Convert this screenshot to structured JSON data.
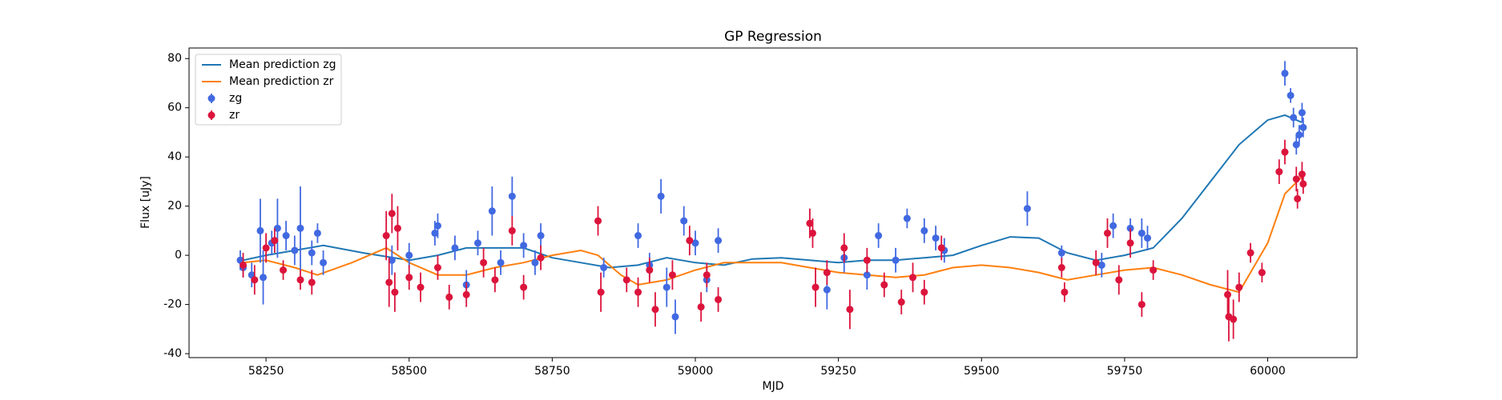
{
  "chart_data": {
    "type": "line",
    "title": "GP Regression",
    "xlabel": "MJD",
    "ylabel": "Flux [uJy]",
    "xlim": [
      58115.5,
      60156
    ],
    "ylim": [
      -41.6,
      84.3
    ],
    "xticks": [
      58250,
      58500,
      58750,
      59000,
      59250,
      59500,
      59750,
      60000
    ],
    "yticks": [
      -40,
      -20,
      0,
      20,
      40,
      60,
      80
    ],
    "legend": "upper left",
    "series": [
      {
        "name": "Mean prediction zg",
        "color": "#1f77b4",
        "x": [
          58210,
          58250,
          58300,
          58350,
          58420,
          58500,
          58550,
          58600,
          58650,
          58700,
          58750,
          58800,
          58850,
          58900,
          58950,
          59000,
          59050,
          59100,
          59150,
          59200,
          59250,
          59300,
          59350,
          59400,
          59450,
          59500,
          59550,
          59600,
          59650,
          59700,
          59750,
          59800,
          59850,
          59900,
          59950,
          60000,
          60030,
          60060
        ],
        "values": [
          -2,
          0,
          2,
          4,
          1,
          -2,
          0,
          3,
          3,
          3,
          -1,
          -3,
          -5,
          -4,
          -1,
          -3,
          -4,
          -1.5,
          -1,
          -2,
          -3,
          -2,
          -2,
          -1,
          0,
          4,
          7.5,
          7,
          1,
          -2,
          0,
          3,
          15,
          30,
          45,
          55,
          57,
          54
        ]
      },
      {
        "name": "Mean prediction zr",
        "color": "#ff7f0e",
        "x": [
          58210,
          58250,
          58300,
          58340,
          58400,
          58460,
          58500,
          58550,
          58600,
          58650,
          58700,
          58750,
          58800,
          58830,
          58870,
          58900,
          58950,
          59000,
          59050,
          59100,
          59150,
          59200,
          59250,
          59300,
          59350,
          59400,
          59450,
          59500,
          59550,
          59600,
          59650,
          59700,
          59750,
          59800,
          59850,
          59900,
          59950,
          60000,
          60030,
          60060
        ],
        "values": [
          -3,
          -2,
          -5,
          -8,
          -3,
          3,
          -3,
          -8,
          -8,
          -5,
          -3,
          0,
          2,
          0,
          -8,
          -12,
          -10,
          -6,
          -3,
          -3,
          -3,
          -5,
          -7,
          -8,
          -9,
          -8,
          -5,
          -4,
          -5,
          -7,
          -10,
          -8,
          -6,
          -5,
          -8,
          -12,
          -15,
          5,
          25,
          32
        ]
      },
      {
        "name": "zg",
        "color": "#4169e1",
        "x": [
          58205,
          58210,
          58225,
          58240,
          58245,
          58260,
          58270,
          58285,
          58300,
          58310,
          58330,
          58340,
          58350,
          58470,
          58500,
          58545,
          58550,
          58580,
          58600,
          58620,
          58645,
          58660,
          58680,
          58700,
          58720,
          58730,
          58840,
          58900,
          58920,
          58940,
          58950,
          58965,
          58980,
          59000,
          59020,
          59040,
          59230,
          59260,
          59300,
          59320,
          59350,
          59370,
          59400,
          59420,
          59435,
          59580,
          59640,
          59710,
          59730,
          59760,
          59780,
          59790,
          60030,
          60040,
          60045,
          60050,
          60055,
          60060,
          60062
        ],
        "values": [
          -2,
          -5,
          -8,
          10,
          -9,
          5,
          11,
          8,
          2,
          11,
          1,
          9,
          -3,
          -2,
          0,
          9,
          12,
          3,
          -12,
          5,
          18,
          -3,
          24,
          4,
          -3,
          8,
          -5,
          8,
          -4,
          24,
          -13,
          -25,
          14,
          5,
          -10,
          6,
          -14,
          -1,
          -8,
          8,
          -2,
          15,
          10,
          7,
          2,
          19,
          1,
          -4,
          12,
          11,
          9,
          7,
          74,
          65,
          56,
          45,
          49,
          58,
          52
        ],
        "errors": [
          4,
          4,
          5,
          13,
          11,
          5,
          12,
          6,
          6,
          17,
          5,
          4,
          5,
          6,
          5,
          5,
          5,
          5,
          6,
          5,
          10,
          5,
          8,
          5,
          5,
          5,
          4,
          5,
          5,
          7,
          8,
          7,
          6,
          5,
          5,
          5,
          8,
          6,
          6,
          5,
          5,
          4,
          5,
          5,
          5,
          7,
          3,
          5,
          5,
          4,
          6,
          5,
          5,
          3,
          4,
          4,
          4,
          4,
          4
        ]
      },
      {
        "name": "zr",
        "color": "#dc143c",
        "x": [
          58210,
          58230,
          58250,
          58265,
          58280,
          58310,
          58330,
          58460,
          58465,
          58470,
          58475,
          58480,
          58500,
          58520,
          58550,
          58570,
          58600,
          58630,
          58650,
          58680,
          58700,
          58730,
          58830,
          58835,
          58880,
          58900,
          58920,
          58930,
          58960,
          58990,
          59010,
          59020,
          59040,
          59200,
          59205,
          59210,
          59230,
          59260,
          59270,
          59300,
          59330,
          59360,
          59380,
          59400,
          59430,
          59640,
          59645,
          59700,
          59720,
          59740,
          59760,
          59780,
          59800,
          59930,
          59932,
          59940,
          59950,
          59970,
          59990,
          60020,
          60030,
          60050,
          60052,
          60060,
          60062
        ],
        "values": [
          -4,
          -10,
          3,
          6,
          -6,
          -10,
          -11,
          8,
          -11,
          17,
          -15,
          11,
          -9,
          -13,
          -5,
          -17,
          -16,
          -3,
          -10,
          10,
          -13,
          -1,
          14,
          -15,
          -10,
          -15,
          -6,
          -22,
          -8,
          6,
          -21,
          -8,
          -18,
          13,
          9,
          -13,
          -7,
          3,
          -22,
          -2,
          -12,
          -19,
          -9,
          -15,
          3,
          -5,
          -15,
          -3,
          9,
          -10,
          5,
          -20,
          -6,
          -16,
          -25,
          -26,
          -13,
          1,
          -7,
          34,
          42,
          31,
          23,
          33,
          29
        ],
        "errors": [
          5,
          6,
          6,
          5,
          4,
          4,
          5,
          10,
          10,
          8,
          8,
          9,
          5,
          6,
          5,
          5,
          5,
          6,
          5,
          6,
          5,
          5,
          6,
          8,
          5,
          6,
          5,
          7,
          6,
          6,
          6,
          5,
          5,
          6,
          6,
          8,
          5,
          6,
          8,
          5,
          5,
          5,
          6,
          5,
          5,
          4,
          4,
          5,
          6,
          6,
          6,
          5,
          4,
          10,
          10,
          8,
          6,
          4,
          4,
          5,
          5,
          5,
          4,
          5,
          4
        ]
      }
    ]
  }
}
